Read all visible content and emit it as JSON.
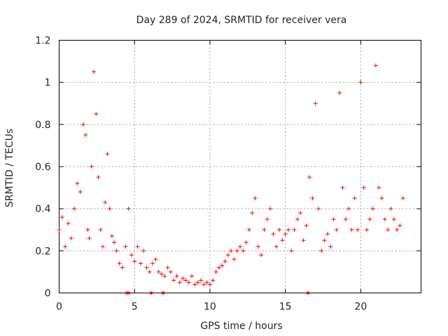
{
  "chart_data": {
    "type": "scatter",
    "title": "Day 289 of 2024, SRMTID for receiver vera",
    "xlabel": "GPS time / hours",
    "ylabel": "SRMTID / TECUs",
    "xlim": [
      0,
      24
    ],
    "ylim": [
      0,
      1.2
    ],
    "xticks": [
      0,
      5,
      10,
      15,
      20
    ],
    "xtick_labels": [
      "0",
      "5",
      "10",
      "15",
      "20"
    ],
    "yticks": [
      0,
      0.2,
      0.4,
      0.6,
      0.8,
      1,
      1.2
    ],
    "ytick_labels": [
      "0",
      "0.2",
      "0.4",
      "0.6",
      "0.8",
      "1",
      "1.2"
    ],
    "grid": true,
    "marker": "+",
    "marker_color": "#ff0000",
    "series": [
      {
        "name": "SRMTID",
        "x": [
          0.0,
          0.2,
          0.4,
          0.6,
          0.8,
          1.0,
          1.2,
          1.4,
          1.6,
          1.75,
          1.9,
          2.0,
          2.15,
          2.3,
          2.45,
          2.6,
          2.75,
          2.9,
          3.05,
          3.2,
          3.35,
          3.5,
          3.65,
          3.8,
          4.0,
          4.2,
          4.4,
          4.6,
          4.8,
          5.0,
          5.2,
          5.4,
          5.6,
          5.8,
          6.0,
          6.2,
          6.4,
          6.6,
          6.8,
          7.0,
          7.2,
          7.4,
          7.6,
          7.8,
          8.0,
          8.2,
          8.4,
          8.6,
          8.8,
          9.0,
          9.2,
          9.4,
          9.6,
          9.8,
          10.0,
          10.2,
          10.4,
          10.6,
          10.8,
          11.0,
          11.2,
          11.4,
          11.6,
          11.8,
          12.0,
          12.2,
          12.4,
          12.6,
          12.8,
          13.0,
          13.2,
          13.4,
          13.6,
          13.8,
          14.0,
          14.2,
          14.4,
          14.6,
          14.8,
          15.0,
          15.2,
          15.4,
          15.6,
          15.8,
          16.0,
          16.2,
          16.4,
          16.6,
          16.8,
          17.0,
          17.2,
          17.4,
          17.6,
          17.8,
          18.0,
          18.2,
          18.4,
          18.6,
          18.8,
          19.0,
          19.2,
          19.4,
          19.6,
          19.8,
          20.0,
          20.2,
          20.4,
          20.6,
          20.8,
          21.0,
          21.2,
          21.4,
          21.6,
          21.8,
          22.0,
          22.2,
          22.4,
          22.6,
          22.8
        ],
        "y": [
          0.3,
          0.36,
          0.22,
          0.33,
          0.26,
          0.4,
          0.52,
          0.48,
          0.8,
          0.75,
          0.3,
          0.26,
          0.6,
          1.05,
          0.85,
          0.55,
          0.3,
          0.22,
          0.43,
          0.66,
          0.4,
          0.27,
          0.24,
          0.2,
          0.14,
          0.12,
          0.22,
          0.4,
          0.18,
          0.15,
          0.22,
          0.14,
          0.2,
          0.12,
          0.1,
          0.14,
          0.16,
          0.1,
          0.09,
          0.08,
          0.12,
          0.1,
          0.06,
          0.08,
          0.05,
          0.07,
          0.06,
          0.05,
          0.08,
          0.04,
          0.05,
          0.06,
          0.04,
          0.05,
          0.04,
          0.06,
          0.1,
          0.12,
          0.13,
          0.15,
          0.18,
          0.2,
          0.16,
          0.2,
          0.22,
          0.2,
          0.24,
          0.3,
          0.38,
          0.45,
          0.22,
          0.18,
          0.3,
          0.35,
          0.4,
          0.28,
          0.22,
          0.3,
          0.25,
          0.28,
          0.3,
          0.2,
          0.3,
          0.35,
          0.38,
          0.25,
          0.32,
          0.55,
          0.45,
          0.9,
          0.4,
          0.2,
          0.25,
          0.28,
          0.22,
          0.35,
          0.3,
          0.95,
          0.5,
          0.35,
          0.4,
          0.3,
          0.45,
          0.3,
          1.0,
          0.5,
          0.3,
          0.35,
          0.4,
          1.08,
          0.5,
          0.45,
          0.35,
          0.3,
          0.4,
          0.35,
          0.3,
          0.32,
          0.45
        ]
      }
    ],
    "baseline_markers_x": [
      4.5,
      4.6,
      6.1,
      6.9,
      16.5
    ]
  }
}
